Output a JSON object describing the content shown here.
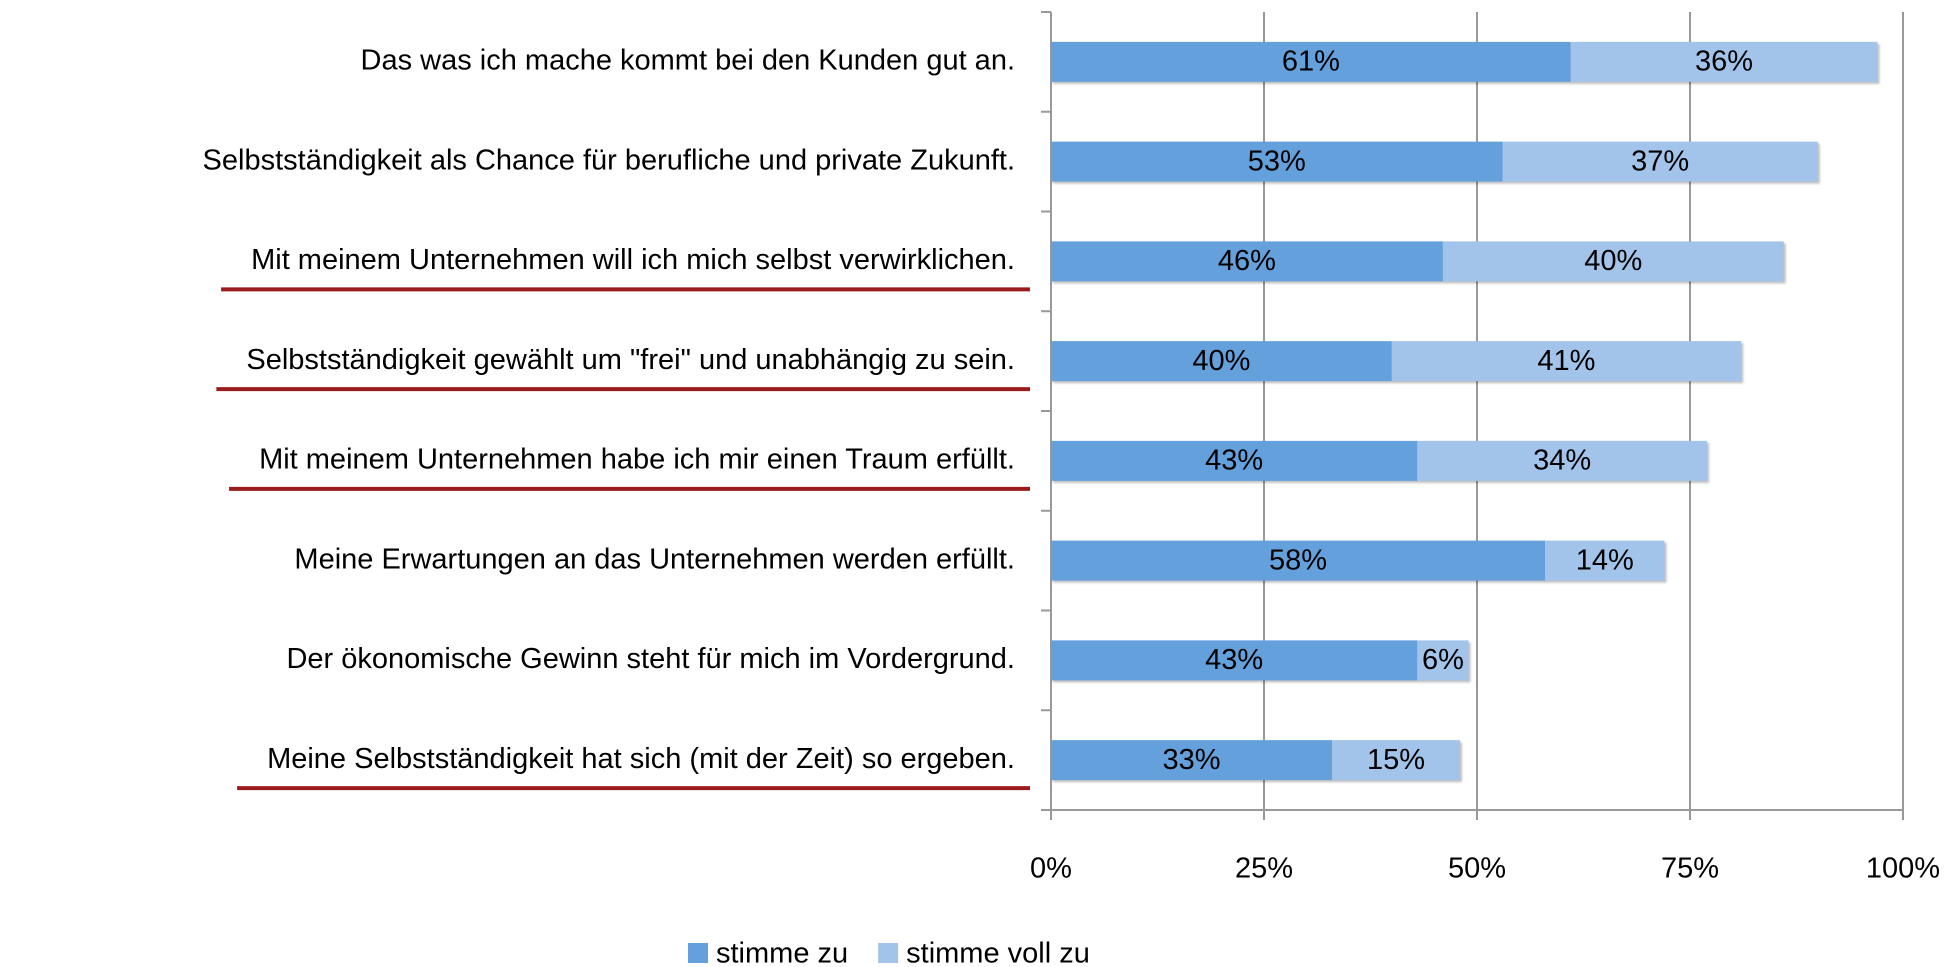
{
  "chart_data": {
    "type": "stacked_bar_horizontal",
    "categories": [
      "Das was ich mache kommt bei den Kunden gut an.",
      "Selbstständigkeit als Chance für berufliche und private Zukunft.",
      "Mit meinem Unternehmen will ich mich selbst verwirklichen.",
      "Selbstständigkeit gewählt um \"frei\" und unabhängig zu sein.",
      "Mit meinem Unternehmen habe ich mir einen Traum erfüllt.",
      "Meine Erwartungen an das Unternehmen werden erfüllt.",
      "Der ökonomische Gewinn steht für mich im Vordergrund.",
      "Meine Selbstständigkeit hat sich (mit der Zeit) so ergeben."
    ],
    "series": [
      {
        "name": "stimme zu",
        "color": "#64a0dc",
        "values": [
          61,
          53,
          46,
          40,
          43,
          58,
          43,
          33
        ],
        "value_labels": [
          "61%",
          "53%",
          "46%",
          "40%",
          "43%",
          "58%",
          "43%",
          "33%"
        ]
      },
      {
        "name": "stimme voll zu",
        "color": "#a3c4ea",
        "values": [
          36,
          37,
          40,
          41,
          34,
          14,
          6,
          15
        ],
        "value_labels": [
          "36%",
          "37%",
          "40%",
          "41%",
          "34%",
          "14%",
          "6%",
          "15%"
        ]
      }
    ],
    "xlim": [
      0,
      100
    ],
    "xticks": [
      {
        "value": 0,
        "label": "0%"
      },
      {
        "value": 25,
        "label": "25%"
      },
      {
        "value": 50,
        "label": "50%"
      },
      {
        "value": 75,
        "label": "75%"
      },
      {
        "value": 100,
        "label": "100%"
      }
    ],
    "grid": true,
    "legend": "bottom",
    "highlight_color": "#9b1c1c",
    "highlighted": [
      false,
      false,
      true,
      true,
      true,
      false,
      false,
      true
    ]
  }
}
